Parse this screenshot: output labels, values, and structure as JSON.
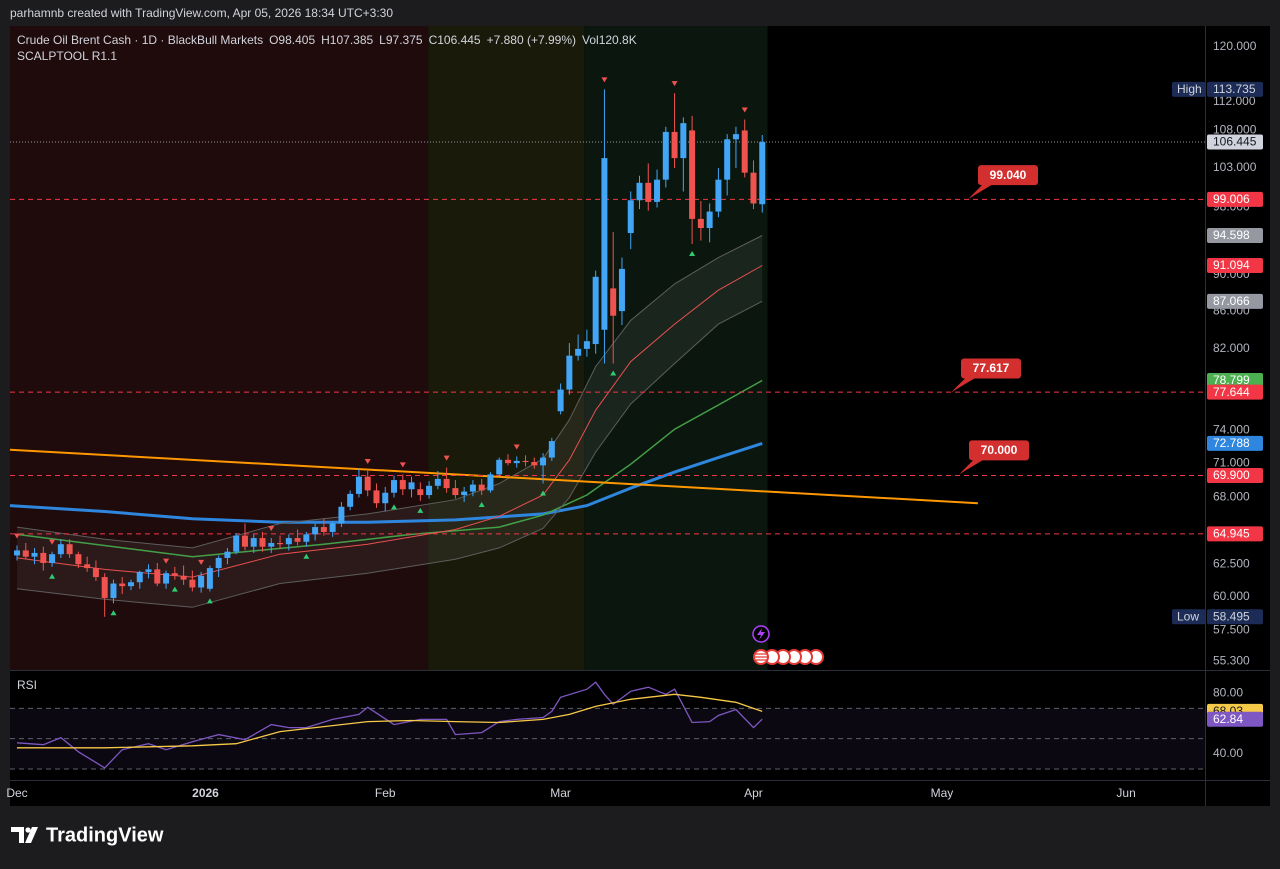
{
  "header": {
    "caption": "parhamnb created with TradingView.com, Apr 05, 2026 18:34 UTC+3:30"
  },
  "footer": {
    "brand": "TradingView"
  },
  "chart_data": [
    {
      "type": "candlestick",
      "title": "Crude Oil Brent Cash · 1D · BlackBull Markets",
      "ohlc": {
        "open": "O98.405",
        "high": "H107.385",
        "low": "L97.375",
        "close": "C106.445",
        "change": "+7.880 (+7.99%)",
        "volume": "Vol120.8K"
      },
      "indicator": "SCALPTOOL R1.1",
      "log": true,
      "ylim": [
        54.7,
        123.2
      ],
      "yticks": [
        {
          "value": 120,
          "label": "120.000"
        },
        {
          "value": 112,
          "label": "112.000"
        },
        {
          "value": 108,
          "label": "108.000"
        },
        {
          "value": 103,
          "label": "103.000"
        },
        {
          "value": 98,
          "label": "98.000"
        },
        {
          "value": 90,
          "label": "90.000"
        },
        {
          "value": 86,
          "label": "86.000"
        },
        {
          "value": 82,
          "label": "82.000"
        },
        {
          "value": 74,
          "label": "74.000"
        },
        {
          "value": 71,
          "label": "71.000"
        },
        {
          "value": 68,
          "label": "68.000"
        },
        {
          "value": 62.5,
          "label": "62.500"
        },
        {
          "value": 60,
          "label": "60.000"
        },
        {
          "value": 57.5,
          "label": "57.500"
        },
        {
          "value": 55.3,
          "label": "55.300"
        }
      ],
      "xlim": [
        -0.8,
        135.5
      ],
      "xticks": [
        {
          "value": 0,
          "label": "Dec"
        },
        {
          "value": 21.5,
          "label": "2026"
        },
        {
          "value": 42,
          "label": "Feb"
        },
        {
          "value": 62,
          "label": "Mar"
        },
        {
          "value": 84,
          "label": "Apr"
        },
        {
          "value": 105.5,
          "label": "May"
        },
        {
          "value": 126.5,
          "label": "Jun"
        }
      ],
      "up_color": "#42a5f5",
      "down_color": "#ef5350",
      "open": [
        63.2,
        63.6,
        63.1,
        63.4,
        62.6,
        63.3,
        64.1,
        63.3,
        62.5,
        62.2,
        61.5,
        59.9,
        61.0,
        60.8,
        61.1,
        61.9,
        62.1,
        61.0,
        61.8,
        61.6,
        61.3,
        60.7,
        60.6,
        62.2,
        63.0,
        63.5,
        64.8,
        63.9,
        64.6,
        63.9,
        64.2,
        64.1,
        64.6,
        64.3,
        64.9,
        65.5,
        65.1,
        65.8,
        67.2,
        68.3,
        69.8,
        68.6,
        67.5,
        68.4,
        69.5,
        68.7,
        68.7,
        68.2,
        69.0,
        69.6,
        68.8,
        68.2,
        68.5,
        69.1,
        68.6,
        70.0,
        71.3,
        71.0,
        71.2,
        71.1,
        70.8,
        71.5,
        75.8,
        77.9,
        81.3,
        82.0,
        82.5,
        84.0,
        88.5,
        86.0,
        94.9,
        98.9,
        101.1,
        98.7,
        101.5,
        107.8,
        104.3,
        108.0,
        96.6,
        95.5,
        97.5,
        101.5,
        106.8,
        108.0,
        102.4,
        98.405
      ],
      "high": [
        64.0,
        64.2,
        63.8,
        63.9,
        63.5,
        64.5,
        64.5,
        63.5,
        63.1,
        62.8,
        61.8,
        61.3,
        61.5,
        61.3,
        62.0,
        62.5,
        62.6,
        62.0,
        62.3,
        62.4,
        62.0,
        61.9,
        62.4,
        63.2,
        63.8,
        65.0,
        65.8,
        64.9,
        65.1,
        64.6,
        64.8,
        64.9,
        65.3,
        65.1,
        65.8,
        66.2,
        66.0,
        67.6,
        68.6,
        70.5,
        70.3,
        69.2,
        68.9,
        69.9,
        70.0,
        69.8,
        69.3,
        69.4,
        70.3,
        70.6,
        69.5,
        68.9,
        69.5,
        69.6,
        70.2,
        71.5,
        71.8,
        71.6,
        71.7,
        71.5,
        71.9,
        73.3,
        78.5,
        82.6,
        83.5,
        84.0,
        90.5,
        113.735,
        95.0,
        92.0,
        100.0,
        102.0,
        103.6,
        102.8,
        108.5,
        113.2,
        109.8,
        110.0,
        98.8,
        98.5,
        103.0,
        107.5,
        108.5,
        109.5,
        104.0,
        107.385
      ],
      "low": [
        62.8,
        62.9,
        62.5,
        62.0,
        62.3,
        63.0,
        63.0,
        62.2,
        61.9,
        61.2,
        58.495,
        59.5,
        60.2,
        60.5,
        60.6,
        61.4,
        60.8,
        60.6,
        61.3,
        60.9,
        60.4,
        60.3,
        60.4,
        61.5,
        62.5,
        63.3,
        63.6,
        63.4,
        63.5,
        63.4,
        63.7,
        63.6,
        64.0,
        63.9,
        64.4,
        64.8,
        64.7,
        65.5,
        66.9,
        68.0,
        68.1,
        67.1,
        66.8,
        68.0,
        68.2,
        68.0,
        67.7,
        67.9,
        68.7,
        68.4,
        67.9,
        67.6,
        68.1,
        68.2,
        68.4,
        69.8,
        70.8,
        70.6,
        70.7,
        70.5,
        69.2,
        71.2,
        75.5,
        77.4,
        80.8,
        81.2,
        81.5,
        80.5,
        80.5,
        84.5,
        93.0,
        97.8,
        97.6,
        98.0,
        100.5,
        103.0,
        100.0,
        93.6,
        94.0,
        93.8,
        96.8,
        99.5,
        103.0,
        101.8,
        97.8,
        97.375
      ],
      "close": [
        63.6,
        63.1,
        63.4,
        62.6,
        63.3,
        64.1,
        63.3,
        62.5,
        62.2,
        61.5,
        59.9,
        61.0,
        60.8,
        61.1,
        61.9,
        62.1,
        61.0,
        61.8,
        61.6,
        61.3,
        60.7,
        61.6,
        62.2,
        63.0,
        63.5,
        64.8,
        63.9,
        64.6,
        63.9,
        64.2,
        64.1,
        64.6,
        64.3,
        64.9,
        65.5,
        65.1,
        65.8,
        67.2,
        68.3,
        69.8,
        68.6,
        67.5,
        68.4,
        69.5,
        68.7,
        69.3,
        68.2,
        69.0,
        69.6,
        68.8,
        68.2,
        68.5,
        69.1,
        68.6,
        70.0,
        71.3,
        71.0,
        71.2,
        71.1,
        70.8,
        71.5,
        73.0,
        77.9,
        81.3,
        82.0,
        82.8,
        89.8,
        104.3,
        85.5,
        90.7,
        98.9,
        101.1,
        98.7,
        101.5,
        107.8,
        104.3,
        109.0,
        96.6,
        95.5,
        97.5,
        101.5,
        106.8,
        107.5,
        102.4,
        98.5,
        106.445
      ],
      "high_label": "High",
      "low_label": "Low",
      "zones": [
        {
          "from": -0.8,
          "to": 46.9,
          "color": "#1f0b0c"
        },
        {
          "from": 46.9,
          "to": 64.7,
          "color": "#1a1a0b"
        },
        {
          "from": 64.7,
          "to": 85.6,
          "color": "#0b170e"
        }
      ],
      "lines": [
        {
          "color": "#2e86de",
          "width": 3,
          "tag_color": "#2e86de",
          "x": [
            -0.8,
            10,
            20,
            30,
            40,
            50,
            60,
            65,
            70,
            75,
            80,
            85
          ],
          "values": [
            67.3,
            66.8,
            66.2,
            65.9,
            65.9,
            66.1,
            66.6,
            67.3,
            68.8,
            70.2,
            71.5,
            72.788
          ]
        },
        {
          "color": "#43a047",
          "width": 1.5,
          "tag_color": "#4caf50",
          "x": [
            0,
            20,
            35,
            45,
            55,
            60,
            65,
            70,
            75,
            80,
            85
          ],
          "values": [
            64.9,
            63.1,
            64.1,
            64.9,
            65.5,
            66.5,
            68.2,
            70.9,
            74.1,
            76.4,
            78.799
          ]
        },
        {
          "color": "#e85050",
          "width": 1,
          "tag_color": "#f23645",
          "x": [
            0,
            10,
            20,
            30,
            40,
            50,
            55,
            60,
            63,
            66,
            70,
            75,
            80,
            85
          ],
          "values": [
            63.0,
            62.1,
            61.5,
            63.3,
            64.1,
            65.3,
            66.4,
            68.2,
            71.3,
            75.9,
            80.7,
            84.6,
            88.3,
            91.094
          ]
        },
        {
          "color": "#5d5d5d",
          "width": 1,
          "tag_color": "#9598a1",
          "x": [
            0,
            10,
            20,
            30,
            40,
            50,
            55,
            60,
            63,
            66,
            70,
            75,
            80,
            85
          ],
          "values": [
            65.5,
            64.5,
            63.8,
            65.8,
            66.6,
            67.8,
            69.2,
            71.4,
            75.0,
            80.2,
            85.0,
            89.0,
            92.0,
            94.598
          ]
        },
        {
          "color": "#5d5d5d",
          "width": 1,
          "tag_color": "#9598a1",
          "x": [
            0,
            10,
            20,
            30,
            40,
            50,
            55,
            60,
            63,
            66,
            70,
            75,
            80,
            85
          ],
          "values": [
            60.6,
            59.8,
            59.2,
            61.0,
            61.8,
            62.9,
            63.8,
            65.4,
            68.0,
            72.0,
            76.5,
            80.5,
            84.6,
            87.066
          ]
        },
        {
          "color": "#ff9800",
          "width": 2,
          "x": [
            -0.8,
            109.6
          ],
          "values": [
            72.2,
            67.5
          ]
        }
      ],
      "fill_between": [
        3,
        4
      ],
      "levels": [
        {
          "value": 99.006
        },
        {
          "value": 77.644
        },
        {
          "value": 69.9,
          "label": "69.900"
        },
        {
          "value": 64.945
        }
      ],
      "level_color": "#f23645",
      "callouts": [
        {
          "value": 99.04,
          "label": "99.040"
        },
        {
          "value": 77.617
        },
        {
          "value": 70,
          "label": "70.000"
        }
      ],
      "sell_signals": [
        0,
        4,
        17,
        21,
        29,
        40,
        44,
        49,
        57,
        67,
        75,
        83
      ],
      "buy_signals": [
        4,
        11,
        18,
        22,
        33,
        43,
        46,
        53,
        60,
        68,
        77
      ],
      "sell_color": "#ef5350",
      "buy_color": "#2ecc71"
    },
    {
      "type": "line",
      "title": "RSI",
      "ylim": [
        22.7,
        94.7
      ],
      "yticks": [
        {
          "value": 80,
          "label": "80.00"
        },
        {
          "value": 40,
          "label": "40.00"
        }
      ],
      "levels": [
        70,
        50,
        30
      ],
      "series": [
        {
          "color": "#7e57c2",
          "x": [
            0,
            3,
            5,
            7,
            10,
            12,
            15,
            17,
            20,
            23,
            26,
            29,
            31,
            33,
            36,
            39,
            40,
            43,
            46,
            49,
            50,
            53,
            55,
            57,
            60,
            61,
            62,
            65,
            66,
            67,
            68,
            70,
            72,
            74,
            75,
            77,
            79,
            80,
            82,
            84,
            85
          ],
          "values": [
            47.3,
            46.0,
            50.7,
            41.3,
            30.7,
            42.7,
            46.7,
            42.7,
            48.0,
            52.7,
            49.3,
            59.3,
            57.3,
            57.3,
            62.7,
            66.0,
            70.7,
            59.3,
            62.7,
            62.7,
            52.7,
            54.0,
            61.3,
            62.7,
            64.0,
            68.0,
            77.3,
            82.7,
            87.3,
            79.3,
            72.7,
            81.3,
            84.0,
            79.3,
            82.7,
            60.7,
            61.3,
            65.3,
            69.3,
            57.3,
            62.84
          ]
        },
        {
          "color": "#f7c948",
          "x": [
            0,
            10,
            20,
            25,
            30,
            35,
            40,
            45,
            50,
            55,
            60,
            63,
            66,
            70,
            75,
            78,
            82,
            85
          ],
          "values": [
            44,
            44,
            45.3,
            46.7,
            54.7,
            58,
            61.3,
            62,
            61.3,
            60.7,
            62.7,
            66,
            71.3,
            76,
            79.3,
            77.3,
            74,
            68.03
          ]
        }
      ]
    }
  ]
}
